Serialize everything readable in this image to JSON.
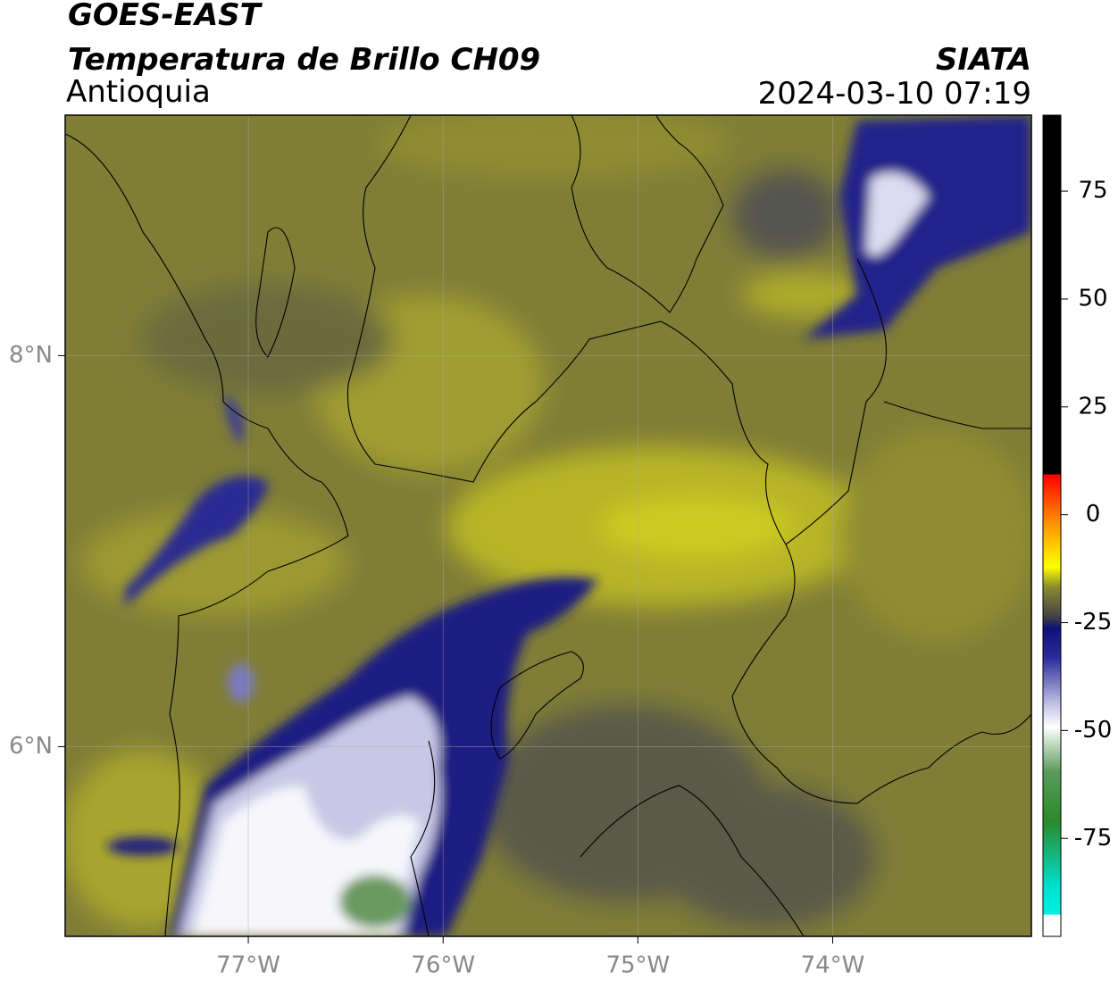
{
  "header": {
    "title": "GOES-EAST",
    "subtitle": "Temperatura de Brillo CH09",
    "region": "Antioquia",
    "source": "SIATA",
    "datetime": "2024-03-10 07:19"
  },
  "map": {
    "xlim": [
      -77.94,
      -72.98
    ],
    "ylim": [
      5.03,
      9.23
    ],
    "lon_ticks": [
      {
        "value": -77,
        "label": "77°W"
      },
      {
        "value": -76,
        "label": "76°W"
      },
      {
        "value": -75,
        "label": "75°W"
      },
      {
        "value": -74,
        "label": "74°W"
      }
    ],
    "lat_ticks": [
      {
        "value": 8,
        "label": "8°N"
      },
      {
        "value": 6,
        "label": "6°N"
      }
    ]
  },
  "colorbar": {
    "lim": [
      -97.7,
      92.6
    ],
    "ticks": [
      75,
      50,
      25,
      0,
      -25,
      -50,
      -75
    ]
  }
}
